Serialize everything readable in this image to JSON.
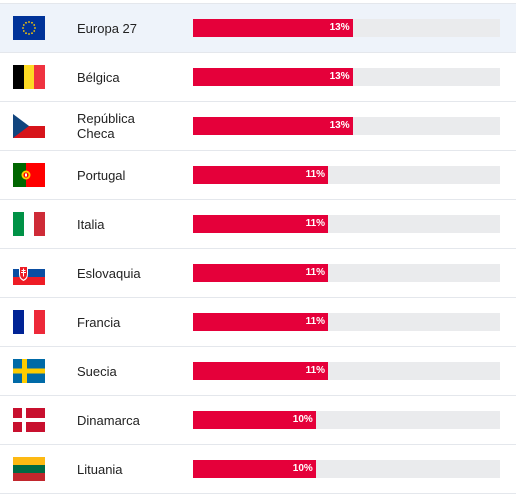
{
  "chart_data": {
    "type": "bar",
    "orientation": "horizontal",
    "categories": [
      "Europa 27",
      "Bélgica",
      "República Checa",
      "Portugal",
      "Italia",
      "Eslovaquia",
      "Francia",
      "Suecia",
      "Dinamarca",
      "Lituania"
    ],
    "values": [
      13,
      13,
      13,
      11,
      11,
      11,
      11,
      11,
      10,
      10
    ],
    "value_labels": [
      "13%",
      "13%",
      "13%",
      "11%",
      "11%",
      "11%",
      "11%",
      "11%",
      "10%",
      "10%"
    ],
    "xlim": [
      0,
      25
    ],
    "highlighted_category": "Europa 27",
    "bar_color": "#e5003a",
    "track_color": "#eaebed"
  },
  "rows": [
    {
      "name": "Europa 27",
      "flag": "eu-flag-icon"
    },
    {
      "name": "Bélgica",
      "flag": "belgium-flag-icon"
    },
    {
      "name": "República Checa",
      "flag": "czech-flag-icon"
    },
    {
      "name": "Portugal",
      "flag": "portugal-flag-icon"
    },
    {
      "name": "Italia",
      "flag": "italy-flag-icon"
    },
    {
      "name": "Eslovaquia",
      "flag": "slovakia-flag-icon"
    },
    {
      "name": "Francia",
      "flag": "france-flag-icon"
    },
    {
      "name": "Suecia",
      "flag": "sweden-flag-icon"
    },
    {
      "name": "Dinamarca",
      "flag": "denmark-flag-icon"
    },
    {
      "name": "Lituania",
      "flag": "lithuania-flag-icon"
    }
  ]
}
